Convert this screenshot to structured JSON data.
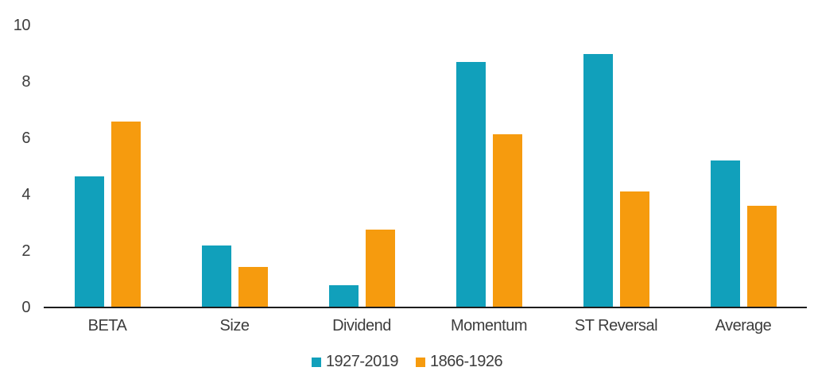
{
  "chart_data": {
    "type": "bar",
    "title": "",
    "xlabel": "",
    "ylabel": "",
    "categories": [
      "BETA",
      "Size",
      "Dividend",
      "Momentum",
      "ST Reversal",
      "Average"
    ],
    "series": [
      {
        "name": "1927-2019",
        "color": "#11a0bb",
        "values": [
          4.65,
          2.2,
          0.8,
          8.7,
          9.0,
          5.2
        ]
      },
      {
        "name": "1866-1926",
        "color": "#f69b0e",
        "values": [
          6.6,
          1.45,
          2.75,
          6.15,
          4.1,
          3.6
        ]
      }
    ],
    "ylim": [
      0,
      10
    ],
    "yticks": [
      0,
      2,
      4,
      6,
      8,
      10
    ],
    "grid": false,
    "legend_position": "bottom",
    "axis_line_color": "#1d1d1d",
    "text_color": "#3d3d3d"
  }
}
